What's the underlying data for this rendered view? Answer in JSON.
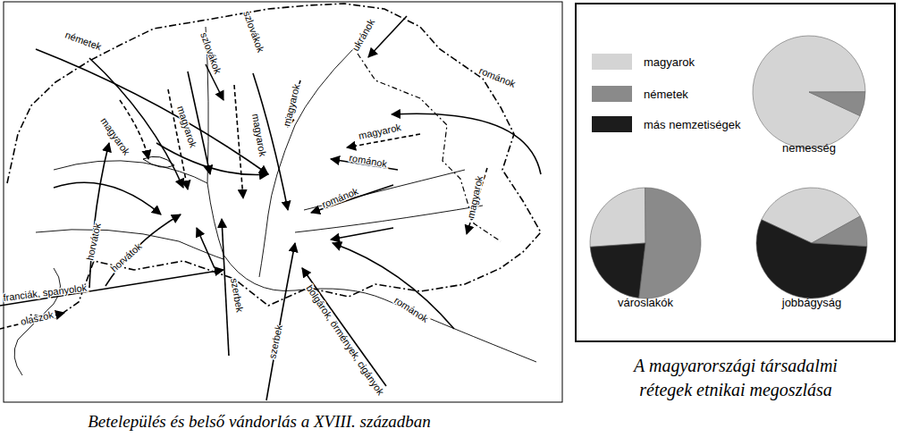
{
  "map": {
    "caption": "Betelepülés és belső vándorlás a XVIII. században",
    "arrows": [
      {
        "label": "németek"
      },
      {
        "label": "szlovákok"
      },
      {
        "label": "szlovákok"
      },
      {
        "label": "magyarok"
      },
      {
        "label": "ukránok"
      },
      {
        "label": "románok"
      },
      {
        "label": "magyarok"
      },
      {
        "label": "románok"
      },
      {
        "label": "románok"
      },
      {
        "label": "magyarok"
      },
      {
        "label": "magyarok"
      },
      {
        "label": "magyarok"
      },
      {
        "label": "magyarok"
      },
      {
        "label": "horvátok"
      },
      {
        "label": "horvátok"
      },
      {
        "label": "franciák, spanyolok"
      },
      {
        "label": "olaszok"
      },
      {
        "label": "szerbek"
      },
      {
        "label": "szerbek"
      },
      {
        "label": "bolgárok, örmények, cigányok"
      },
      {
        "label": "románok"
      }
    ]
  },
  "pie_caption": [
    "A magyarországi társadalmi",
    "rétegek etnikai megoszlása"
  ],
  "chart_data": [
    {
      "type": "pie",
      "title": "nemesség",
      "categories": [
        "magyarok",
        "németek",
        "más nemzetiségek"
      ],
      "values": [
        93,
        7,
        0
      ],
      "colors": [
        "#d4d4d4",
        "#8a8a8a",
        "#1c1c1c"
      ]
    },
    {
      "type": "pie",
      "title": "városlakók",
      "categories": [
        "magyarok",
        "németek",
        "más nemzetiségek"
      ],
      "values": [
        26,
        52,
        22
      ],
      "colors": [
        "#d4d4d4",
        "#8a8a8a",
        "#1c1c1c"
      ]
    },
    {
      "type": "pie",
      "title": "jobbágyság",
      "categories": [
        "magyarok",
        "németek",
        "más nemzetiségek"
      ],
      "values": [
        35,
        9,
        56
      ],
      "colors": [
        "#d4d4d4",
        "#8a8a8a",
        "#1c1c1c"
      ]
    }
  ]
}
